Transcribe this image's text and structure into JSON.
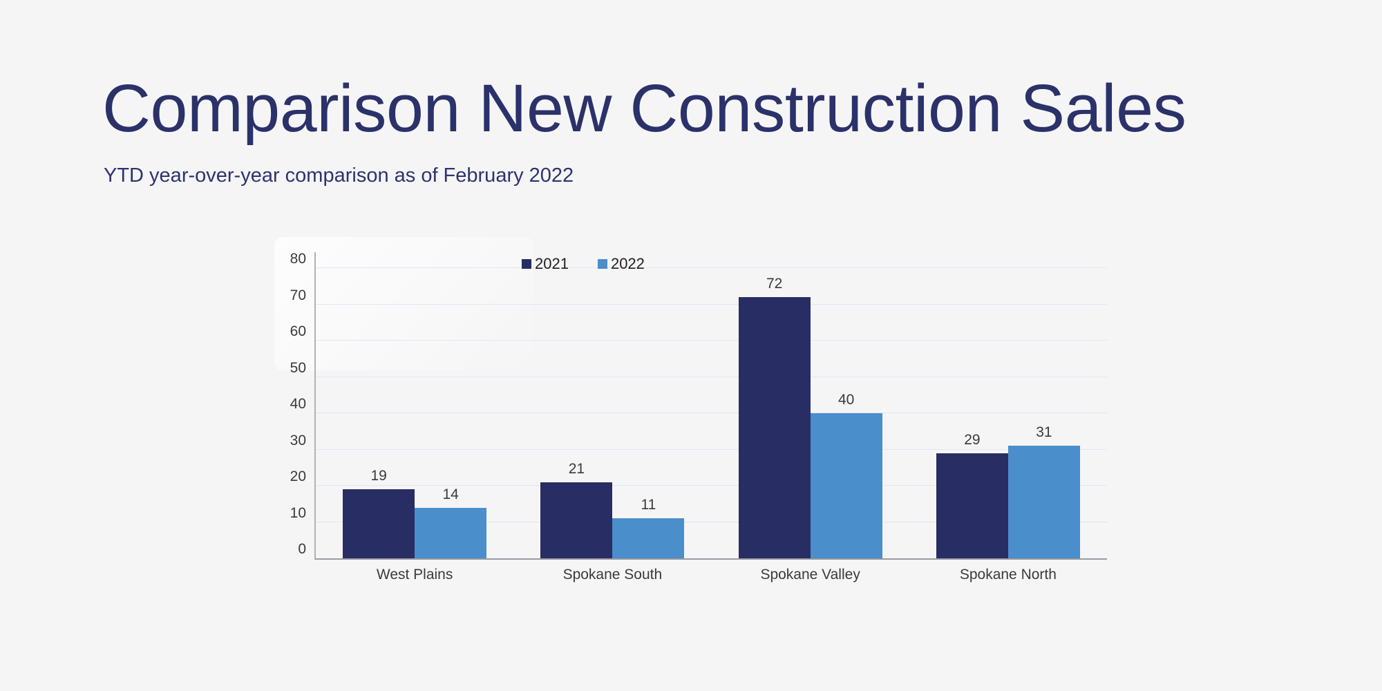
{
  "page": {
    "title": "Comparison New Construction Sales",
    "subtitle": "YTD year-over-year comparison as of February 2022"
  },
  "colors": {
    "background": "#f5f5f6",
    "title_text": "#2b3169",
    "subtitle_text": "#2d336e",
    "gridline": "#e3e6f2",
    "axis_line": "#9b9ba1",
    "tick_text": "#3a3a3a",
    "series_2021": "#282d64",
    "series_2022": "#4a8ecc"
  },
  "chart_data": {
    "type": "bar",
    "title": "",
    "xlabel": "",
    "ylabel": "",
    "categories": [
      "West Plains",
      "Spokane South",
      "Spokane Valley",
      "Spokane North"
    ],
    "series": [
      {
        "name": "2021",
        "color": "#282d64",
        "values": [
          19,
          21,
          72,
          29
        ]
      },
      {
        "name": "2022",
        "color": "#4a8ecc",
        "values": [
          14,
          11,
          40,
          31
        ]
      }
    ],
    "ylim": [
      0,
      80
    ],
    "yticks": [
      0,
      10,
      20,
      30,
      40,
      50,
      60,
      70,
      80
    ],
    "grid": true,
    "legend_position": "top-center",
    "value_labels": true
  }
}
